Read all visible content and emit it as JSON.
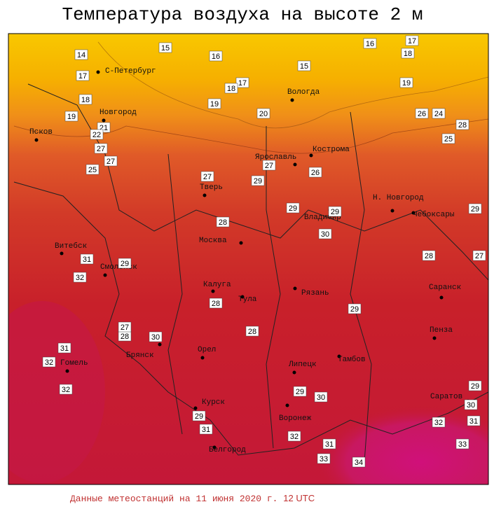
{
  "title": "Температура воздуха на высоте 2 м",
  "cities": [
    "С-Петербург",
    "Вологда",
    "Новгород",
    "Псков",
    "Кострома",
    "Ярославль",
    "Тверь",
    "Н. Новгород",
    "Чебоксары",
    "Владимир",
    "Витебск",
    "Москва",
    "Смоленск",
    "Калуга",
    "Тула",
    "Рязань",
    "Саранск",
    "Пенза",
    "Брянск",
    "Орел",
    "Гомель",
    "Липецк",
    "Тамбов",
    "Курск",
    "Саратов",
    "Воронеж",
    "Белгород"
  ],
  "stations": [
    15,
    16,
    16,
    17,
    18,
    14,
    17,
    15,
    17,
    18,
    19,
    18,
    19,
    20,
    26,
    24,
    19,
    21,
    22,
    27,
    28,
    25,
    27,
    27,
    26,
    29,
    25,
    27,
    29,
    29,
    28,
    30,
    29,
    31,
    29,
    28,
    27,
    32,
    28,
    29,
    28,
    30,
    28,
    27,
    31,
    32,
    29,
    32,
    29,
    30,
    30,
    29,
    32,
    31,
    31,
    32,
    31,
    33,
    33,
    34
  ],
  "footer": {
    "prefix": "Данные метеостанций на",
    "date": "11 июня 2020 г.",
    "time": "12 UTC"
  }
}
